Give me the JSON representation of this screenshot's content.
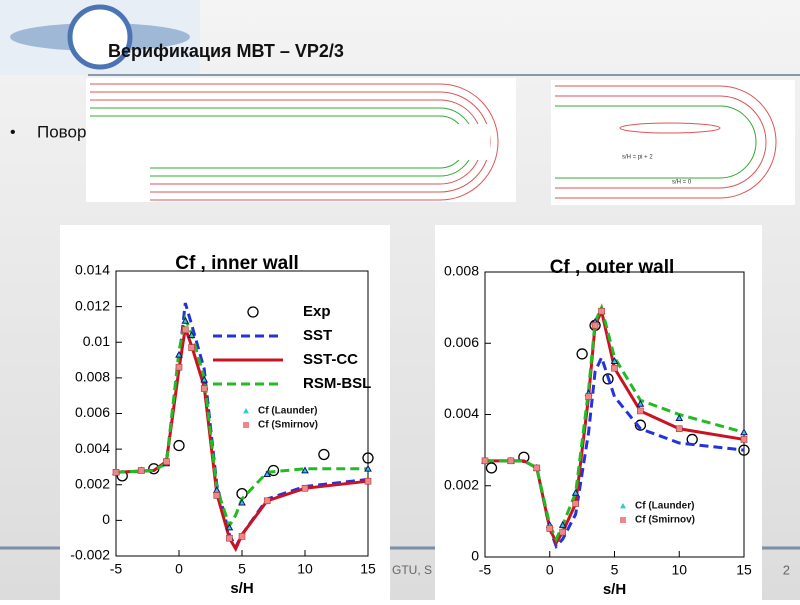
{
  "title": "Верификация МВТ – VP2/3",
  "bullet": "Поворотный канал",
  "image_labels": [
    "s/H = pi + 2",
    "s/H = 0"
  ],
  "footer": "GTU, S",
  "page_number": "2",
  "chart_data": [
    {
      "type": "line",
      "title": "Cf , inner wall",
      "xlabel": "s/H",
      "xlim": [
        -5,
        15
      ],
      "ylim": [
        -0.002,
        0.014
      ],
      "xticks": [
        -5,
        0,
        5,
        10,
        15
      ],
      "yticks": [
        -0.002,
        0,
        0.002,
        0.004,
        0.006,
        0.008,
        0.01,
        0.012,
        0.014
      ],
      "series": [
        {
          "name": "Exp",
          "style": "points",
          "marker": "circle",
          "color": "#000000",
          "x": [
            -4.5,
            -2,
            0,
            5,
            7.5,
            11.5,
            15
          ],
          "values": [
            0.0025,
            0.0029,
            0.0042,
            0.0015,
            0.0028,
            0.0037,
            0.0035
          ]
        },
        {
          "name": "SST",
          "style": "dashed",
          "color": "#2233dd",
          "x": [
            -5,
            -2,
            -1,
            0,
            0.5,
            1,
            2,
            3,
            4,
            4.5,
            5,
            7,
            10,
            15
          ],
          "values": [
            0.0027,
            0.0028,
            0.0033,
            0.009,
            0.0122,
            0.011,
            0.0085,
            0.002,
            -0.0008,
            -0.0015,
            -0.0008,
            0.0012,
            0.0019,
            0.0023
          ]
        },
        {
          "name": "SST-CC",
          "style": "solid",
          "color": "#cc1122",
          "x": [
            -5,
            -2,
            -1,
            0,
            0.5,
            1,
            2,
            3,
            4,
            4.5,
            5,
            7,
            10,
            15
          ],
          "values": [
            0.0027,
            0.0028,
            0.0033,
            0.0085,
            0.0108,
            0.0098,
            0.0075,
            0.0015,
            -0.001,
            -0.0016,
            -0.0008,
            0.0011,
            0.0018,
            0.0022
          ]
        },
        {
          "name": "RSM-BSL",
          "style": "dashed",
          "color": "#22bb22",
          "x": [
            -5,
            -2,
            -1,
            0,
            0.5,
            1,
            2,
            3,
            4,
            4.5,
            5,
            7,
            10,
            15
          ],
          "values": [
            0.0027,
            0.0028,
            0.0032,
            0.0095,
            0.0113,
            0.0105,
            0.008,
            0.0018,
            -0.0003,
            0.0003,
            0.0012,
            0.0027,
            0.0029,
            0.0029
          ]
        },
        {
          "name": "Cf  (Launder)",
          "style": "markers",
          "marker": "triangle",
          "color": "#33cccc",
          "x": [
            -5,
            -3,
            -1,
            0,
            0.5,
            1,
            2,
            3,
            4,
            5,
            7,
            10,
            15
          ],
          "values": [
            0.0027,
            0.0028,
            0.0032,
            0.0093,
            0.0112,
            0.0104,
            0.0079,
            0.0017,
            -0.0004,
            0.001,
            0.0026,
            0.0028,
            0.0029
          ]
        },
        {
          "name": "Cf  (Smirnov)",
          "style": "markers",
          "marker": "square",
          "color": "#ee8888",
          "x": [
            -5,
            -3,
            -1,
            0,
            0.5,
            1,
            2,
            3,
            4,
            5,
            7,
            10,
            15
          ],
          "values": [
            0.0027,
            0.0028,
            0.0033,
            0.0086,
            0.0107,
            0.0097,
            0.0074,
            0.0014,
            -0.001,
            -0.0009,
            0.0011,
            0.0018,
            0.0022
          ]
        }
      ]
    },
    {
      "type": "line",
      "title": "Cf , outer wall",
      "xlabel": "s/H",
      "xlim": [
        -5,
        15
      ],
      "ylim": [
        0,
        0.008
      ],
      "xticks": [
        -5,
        0,
        5,
        10,
        15
      ],
      "yticks": [
        0,
        0.002,
        0.004,
        0.006,
        0.008
      ],
      "series": [
        {
          "name": "Exp",
          "style": "points",
          "marker": "circle",
          "color": "#000000",
          "in_legend": false,
          "x": [
            -4.5,
            -2,
            2.5,
            3.5,
            4.5,
            7,
            11,
            15
          ],
          "values": [
            0.0025,
            0.0028,
            0.0057,
            0.0065,
            0.005,
            0.0037,
            0.0033,
            0.003
          ]
        },
        {
          "name": "SST",
          "style": "dashed",
          "color": "#2233dd",
          "in_legend": false,
          "x": [
            -5,
            -2,
            -1,
            0,
            0.5,
            1,
            2,
            3,
            3.5,
            4,
            5,
            7,
            10,
            15
          ],
          "values": [
            0.0027,
            0.0027,
            0.0025,
            0.0008,
            0.0003,
            0.0005,
            0.0012,
            0.0035,
            0.0052,
            0.0056,
            0.0045,
            0.0036,
            0.0032,
            0.003
          ]
        },
        {
          "name": "SST-CC",
          "style": "solid",
          "color": "#cc1122",
          "in_legend": false,
          "x": [
            -5,
            -2,
            -1,
            0,
            0.5,
            1,
            2,
            3,
            3.5,
            4,
            5,
            7,
            10,
            15
          ],
          "values": [
            0.0027,
            0.0027,
            0.0025,
            0.0008,
            0.0004,
            0.0007,
            0.0015,
            0.0045,
            0.0065,
            0.0069,
            0.0053,
            0.0041,
            0.0036,
            0.0033
          ]
        },
        {
          "name": "RSM-BSL",
          "style": "dashed",
          "color": "#22bb22",
          "in_legend": false,
          "x": [
            -5,
            -2,
            -1,
            0,
            0.5,
            1,
            2,
            3,
            3.5,
            4,
            5,
            7,
            10,
            15
          ],
          "values": [
            0.0027,
            0.0027,
            0.0025,
            0.0009,
            0.0005,
            0.0009,
            0.0018,
            0.0047,
            0.0066,
            0.007,
            0.0056,
            0.0044,
            0.004,
            0.0035
          ]
        },
        {
          "name": "Cf  (Launder)",
          "style": "markers",
          "marker": "triangle",
          "color": "#33cccc",
          "x": [
            -5,
            -3,
            -1,
            0,
            1,
            2,
            3,
            3.5,
            4,
            5,
            7,
            10,
            15
          ],
          "values": [
            0.0027,
            0.0027,
            0.0025,
            0.0009,
            0.0009,
            0.0018,
            0.0046,
            0.0066,
            0.0069,
            0.0055,
            0.0043,
            0.0039,
            0.0035
          ]
        },
        {
          "name": "Cf  (Smirnov)",
          "style": "markers",
          "marker": "square",
          "color": "#ee8888",
          "x": [
            -5,
            -3,
            -1,
            0,
            1,
            2,
            3,
            3.5,
            4,
            5,
            7,
            10,
            15
          ],
          "values": [
            0.0027,
            0.0027,
            0.0025,
            0.0008,
            0.0007,
            0.0015,
            0.0045,
            0.0065,
            0.0069,
            0.0053,
            0.0041,
            0.0036,
            0.0033
          ]
        }
      ]
    }
  ]
}
